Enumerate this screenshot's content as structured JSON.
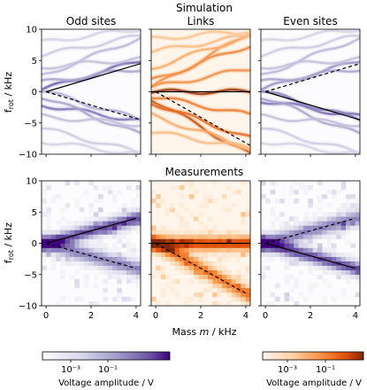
{
  "header": {
    "simulation_label": "Simulation",
    "measurements_label": "Measurements"
  },
  "labels": {
    "y_axis": "f_rot / kHz",
    "x_axis": "Mass m / kHz",
    "colorbar_left": "Voltage amplitude / V",
    "colorbar_right": "Voltage amplitude / V"
  },
  "colors": {
    "purple": "#4b2c8c",
    "orange": "#d94801",
    "line": "#000000"
  },
  "chart_data": [
    {
      "type": "heatmap",
      "row": "Simulation",
      "title": "Odd sites",
      "colormap": "purple",
      "xlim": [
        -0.2,
        4.2
      ],
      "ylim": [
        -10,
        10
      ],
      "xticks": [
        0,
        2,
        4
      ],
      "yticks": [
        -10,
        -5,
        0,
        5,
        10
      ],
      "solid_line": [
        [
          0,
          0
        ],
        [
          4.2,
          4.5
        ]
      ],
      "dashed_line": [
        [
          0,
          0
        ],
        [
          4.2,
          -4.5
        ]
      ]
    },
    {
      "type": "heatmap",
      "row": "Simulation",
      "title": "Links",
      "colormap": "orange",
      "xlim": [
        -0.2,
        4.2
      ],
      "ylim": [
        -10,
        10
      ],
      "xticks": [
        0,
        2,
        4
      ],
      "yticks": [
        -10,
        -5,
        0,
        5,
        10
      ],
      "solid_line": [
        [
          -0.2,
          0
        ],
        [
          4.2,
          0
        ]
      ],
      "dashed_line": [
        [
          0,
          0
        ],
        [
          4.2,
          -8.6
        ]
      ]
    },
    {
      "type": "heatmap",
      "row": "Simulation",
      "title": "Even sites",
      "colormap": "purple",
      "xlim": [
        -0.2,
        4.2
      ],
      "ylim": [
        -10,
        10
      ],
      "xticks": [
        0,
        2,
        4
      ],
      "yticks": [
        -10,
        -5,
        0,
        5,
        10
      ],
      "solid_line": [
        [
          0,
          0
        ],
        [
          4.2,
          -4.5
        ]
      ],
      "dashed_line": [
        [
          0,
          0
        ],
        [
          4.2,
          4.5
        ]
      ]
    },
    {
      "type": "heatmap",
      "row": "Measurements",
      "title": "",
      "colormap": "purple",
      "xlim": [
        -0.2,
        4.2
      ],
      "ylim": [
        -10,
        10
      ],
      "xticks": [
        0,
        2,
        4
      ],
      "yticks": [
        -10,
        -5,
        0,
        5,
        10
      ],
      "solid_line": [
        [
          0,
          0
        ],
        [
          4,
          4
        ]
      ],
      "dashed_line": [
        [
          0,
          0
        ],
        [
          4,
          -4
        ]
      ]
    },
    {
      "type": "heatmap",
      "row": "Measurements",
      "title": "",
      "colormap": "orange",
      "xlim": [
        -0.2,
        4.2
      ],
      "ylim": [
        -10,
        10
      ],
      "xticks": [
        0,
        2,
        4
      ],
      "yticks": [
        -10,
        -5,
        0,
        5,
        10
      ],
      "solid_line": [
        [
          -0.2,
          0
        ],
        [
          4.2,
          0
        ]
      ],
      "dashed_line": [
        [
          0,
          0
        ],
        [
          4,
          -8
        ]
      ]
    },
    {
      "type": "heatmap",
      "row": "Measurements",
      "title": "",
      "colormap": "purple",
      "xlim": [
        -0.2,
        4.2
      ],
      "ylim": [
        -10,
        10
      ],
      "xticks": [
        0,
        2,
        4
      ],
      "yticks": [
        -10,
        -5,
        0,
        5,
        10
      ],
      "solid_line": [
        [
          0,
          0
        ],
        [
          4,
          -4
        ]
      ],
      "dashed_line": [
        [
          0,
          0
        ],
        [
          4,
          4
        ]
      ]
    }
  ],
  "colorbars": [
    {
      "colormap": "purple",
      "scale": "log",
      "tick_labels": [
        "10⁻³",
        "10⁻¹"
      ],
      "label": "Voltage amplitude / V"
    },
    {
      "colormap": "orange",
      "scale": "log",
      "tick_labels": [
        "10⁻³",
        "10⁻¹"
      ],
      "label": "Voltage amplitude / V"
    }
  ]
}
